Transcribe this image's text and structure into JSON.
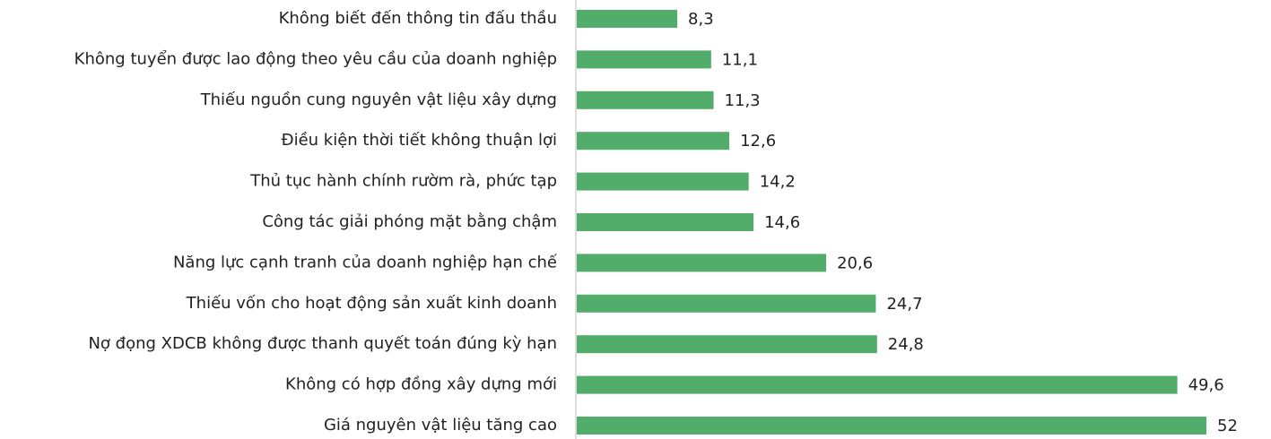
{
  "chart_data": {
    "type": "barh",
    "categories": [
      "Không biết đến thông tin đấu thầu",
      "Không tuyển được lao động theo yêu cầu của doanh nghiệp",
      "Thiếu nguồn cung nguyên vật liệu xây dựng",
      "Điều kiện thời tiết không thuận lợi",
      "Thủ tục hành chính rườm rà, phức tạp",
      "Công tác giải phóng mặt bằng chậm",
      "Năng lực cạnh tranh của doanh nghiệp hạn chế",
      "Thiếu vốn cho hoạt động sản xuất kinh doanh",
      "Nợ đọng XDCB không được thanh quyết toán đúng kỳ hạn",
      "Không có hợp đồng xây dựng mới",
      "Giá nguyên vật liệu tăng cao"
    ],
    "values": [
      8.3,
      11.1,
      11.3,
      12.6,
      14.2,
      14.6,
      20.6,
      24.7,
      24.8,
      49.6,
      52
    ],
    "value_labels": [
      "8,3",
      "11,1",
      "11,3",
      "12,6",
      "14,2",
      "14,6",
      "20,6",
      "24,7",
      "24,8",
      "49,6",
      "52"
    ],
    "color": "#52ad6b",
    "xlim": [
      0,
      52
    ]
  }
}
